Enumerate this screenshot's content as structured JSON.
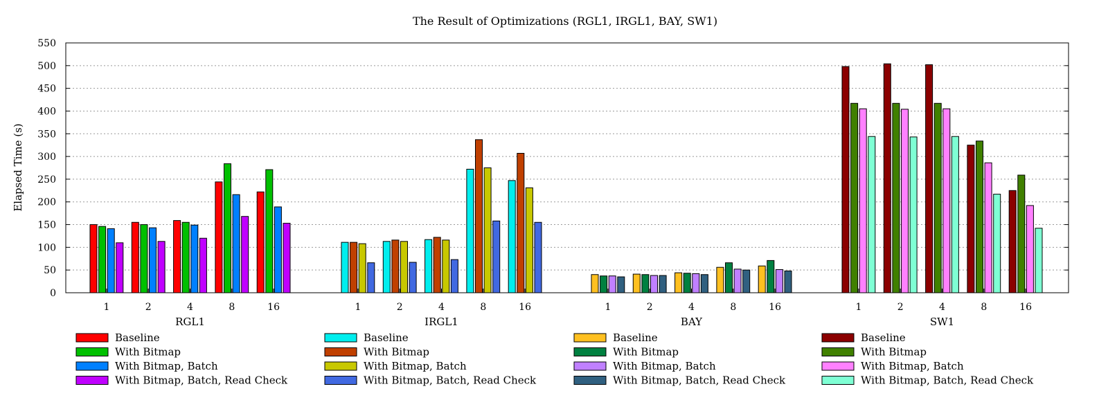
{
  "chart_data": {
    "type": "bar",
    "title": "The Result of Optimizations (RGL1, IRGL1, BAY, SW1)",
    "xlabel": "",
    "ylabel": "Elapsed Time (s)",
    "ylim": [
      0,
      550
    ],
    "yticks": [
      0,
      50,
      100,
      150,
      200,
      250,
      300,
      350,
      400,
      450,
      500,
      550
    ],
    "grid": "horizontal-dotted",
    "categories": [
      "1",
      "2",
      "4",
      "8",
      "16"
    ],
    "legend_position": "bottom",
    "groups": [
      {
        "name": "RGL1",
        "series": [
          {
            "name": "Baseline",
            "color": "#ff0000",
            "values": [
              150,
              155,
              159,
              244,
              222
            ]
          },
          {
            "name": "With Bitmap",
            "color": "#00c000",
            "values": [
              146,
              150,
              155,
              284,
              271
            ]
          },
          {
            "name": "With Bitmap, Batch",
            "color": "#0080ff",
            "values": [
              141,
              143,
              149,
              216,
              189
            ]
          },
          {
            "name": "With Bitmap, Batch, Read Check",
            "color": "#c000ff",
            "values": [
              110,
              113,
              120,
              168,
              153
            ]
          }
        ]
      },
      {
        "name": "IRGL1",
        "series": [
          {
            "name": "Baseline",
            "color": "#00eeee",
            "values": [
              111,
              113,
              117,
              272,
              247
            ]
          },
          {
            "name": "With Bitmap",
            "color": "#c04000",
            "values": [
              111,
              116,
              122,
              337,
              307
            ]
          },
          {
            "name": "With Bitmap, Batch",
            "color": "#c8c800",
            "values": [
              108,
              113,
              116,
              275,
              231
            ]
          },
          {
            "name": "With Bitmap, Batch, Read Check",
            "color": "#4169e1",
            "values": [
              66,
              67,
              73,
              158,
              155
            ]
          }
        ]
      },
      {
        "name": "BAY",
        "series": [
          {
            "name": "Baseline",
            "color": "#ffc020",
            "values": [
              40,
              41,
              44,
              56,
              59
            ]
          },
          {
            "name": "With Bitmap",
            "color": "#008040",
            "values": [
              37,
              40,
              43,
              66,
              71
            ]
          },
          {
            "name": "With Bitmap, Batch",
            "color": "#c080ff",
            "values": [
              37,
              38,
              42,
              52,
              51
            ]
          },
          {
            "name": "With Bitmap, Batch, Read Check",
            "color": "#306080",
            "values": [
              35,
              38,
              40,
              50,
              48
            ]
          }
        ]
      },
      {
        "name": "SW1",
        "series": [
          {
            "name": "Baseline",
            "color": "#8b0000",
            "values": [
              498,
              504,
              502,
              325,
              225
            ]
          },
          {
            "name": "With Bitmap",
            "color": "#408000",
            "values": [
              417,
              417,
              417,
              334,
              259
            ]
          },
          {
            "name": "With Bitmap, Batch",
            "color": "#ff80ff",
            "values": [
              405,
              404,
              405,
              286,
              192
            ]
          },
          {
            "name": "With Bitmap, Batch, Read Check",
            "color": "#7fffd4",
            "values": [
              344,
              343,
              344,
              217,
              142
            ]
          }
        ]
      }
    ]
  }
}
